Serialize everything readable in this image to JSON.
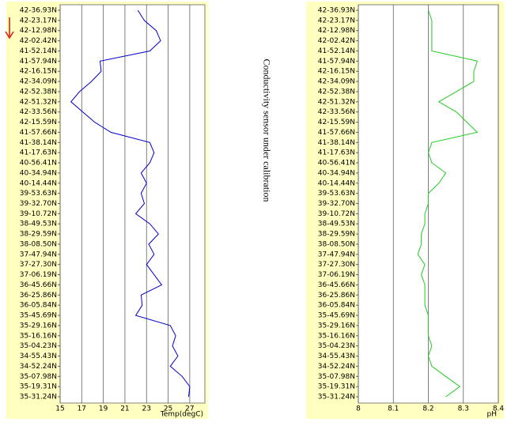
{
  "annotation": "Conductivity sensor under calibration",
  "chart_data": [
    {
      "type": "line",
      "xlabel": "Temp(degC)",
      "categories": [
        "42-36.93N",
        "42-23.17N",
        "42-12.98N",
        "42-02.42N",
        "41-52.14N",
        "41-57.94N",
        "42-16.15N",
        "42-34.09N",
        "42-52.38N",
        "42-51.32N",
        "42-33.56N",
        "42-15.59N",
        "41-57.66N",
        "41-38.14N",
        "41-17.63N",
        "40-56.41N",
        "40-34.94N",
        "40-14.44N",
        "39-53.63N",
        "39-32.70N",
        "39-10.72N",
        "38-49.53N",
        "38-29.59N",
        "38-08.50N",
        "37-47.94N",
        "37-27.30N",
        "37-06.19N",
        "36-45.66N",
        "36-25.86N",
        "36-05.84N",
        "35-45.69N",
        "35-29.16N",
        "35-16.16N",
        "35-04.23N",
        "34-55.43N",
        "34-52.24N",
        "35-07.98N",
        "35-19.31N",
        "35-31.24N"
      ],
      "series": [
        {
          "color": "#0000cc",
          "values": [
            22.2,
            22.8,
            23.9,
            24.3,
            23.3,
            18.7,
            18.8,
            17.9,
            16.8,
            16.0,
            17.1,
            18.2,
            19.7,
            23.3,
            23.7,
            23.3,
            22.5,
            23.0,
            22.5,
            22.8,
            22.0,
            23.3,
            24.1,
            23.2,
            23.7,
            23.0,
            23.7,
            24.4,
            22.5,
            22.6,
            22.0,
            25.2,
            25.7,
            25.4,
            25.9,
            25.2,
            26.3,
            27.0,
            26.9
          ]
        }
      ],
      "xlim": [
        15,
        28.4
      ],
      "xticks": [
        15,
        17,
        19,
        21,
        23,
        25,
        27
      ],
      "grid": true
    },
    {
      "type": "line",
      "xlabel": "pH",
      "categories": [
        "42-36.93N",
        "42-23.17N",
        "42-12.98N",
        "42-02.42N",
        "41-52.14N",
        "41-57.94N",
        "42-16.15N",
        "42-34.09N",
        "42-52.38N",
        "42-51.32N",
        "42-33.56N",
        "42-15.59N",
        "41-57.66N",
        "41-38.14N",
        "41-17.63N",
        "40-56.41N",
        "40-34.94N",
        "40-14.44N",
        "39-53.63N",
        "39-32.70N",
        "39-10.72N",
        "38-49.53N",
        "38-29.59N",
        "38-08.50N",
        "37-47.94N",
        "37-27.30N",
        "37-06.19N",
        "36-45.66N",
        "36-25.86N",
        "36-05.84N",
        "35-45.69N",
        "35-29.16N",
        "35-16.16N",
        "35-04.23N",
        "34-55.43N",
        "34-52.24N",
        "35-07.98N",
        "35-19.31N",
        "35-31.24N"
      ],
      "series": [
        {
          "color": "#22cc22",
          "values": [
            8.2,
            8.21,
            8.21,
            8.21,
            8.21,
            8.34,
            8.33,
            8.33,
            8.28,
            8.23,
            8.28,
            8.31,
            8.34,
            8.21,
            8.2,
            8.21,
            8.25,
            8.23,
            8.2,
            8.2,
            8.19,
            8.19,
            8.18,
            8.18,
            8.17,
            8.19,
            8.18,
            8.19,
            8.19,
            8.19,
            8.2,
            8.2,
            8.2,
            8.21,
            8.2,
            8.21,
            8.25,
            8.29,
            8.25
          ]
        }
      ],
      "xlim": [
        8,
        8.4
      ],
      "xticks": [
        8,
        8.1,
        8.2,
        8.3,
        8.4
      ],
      "grid": true
    }
  ]
}
